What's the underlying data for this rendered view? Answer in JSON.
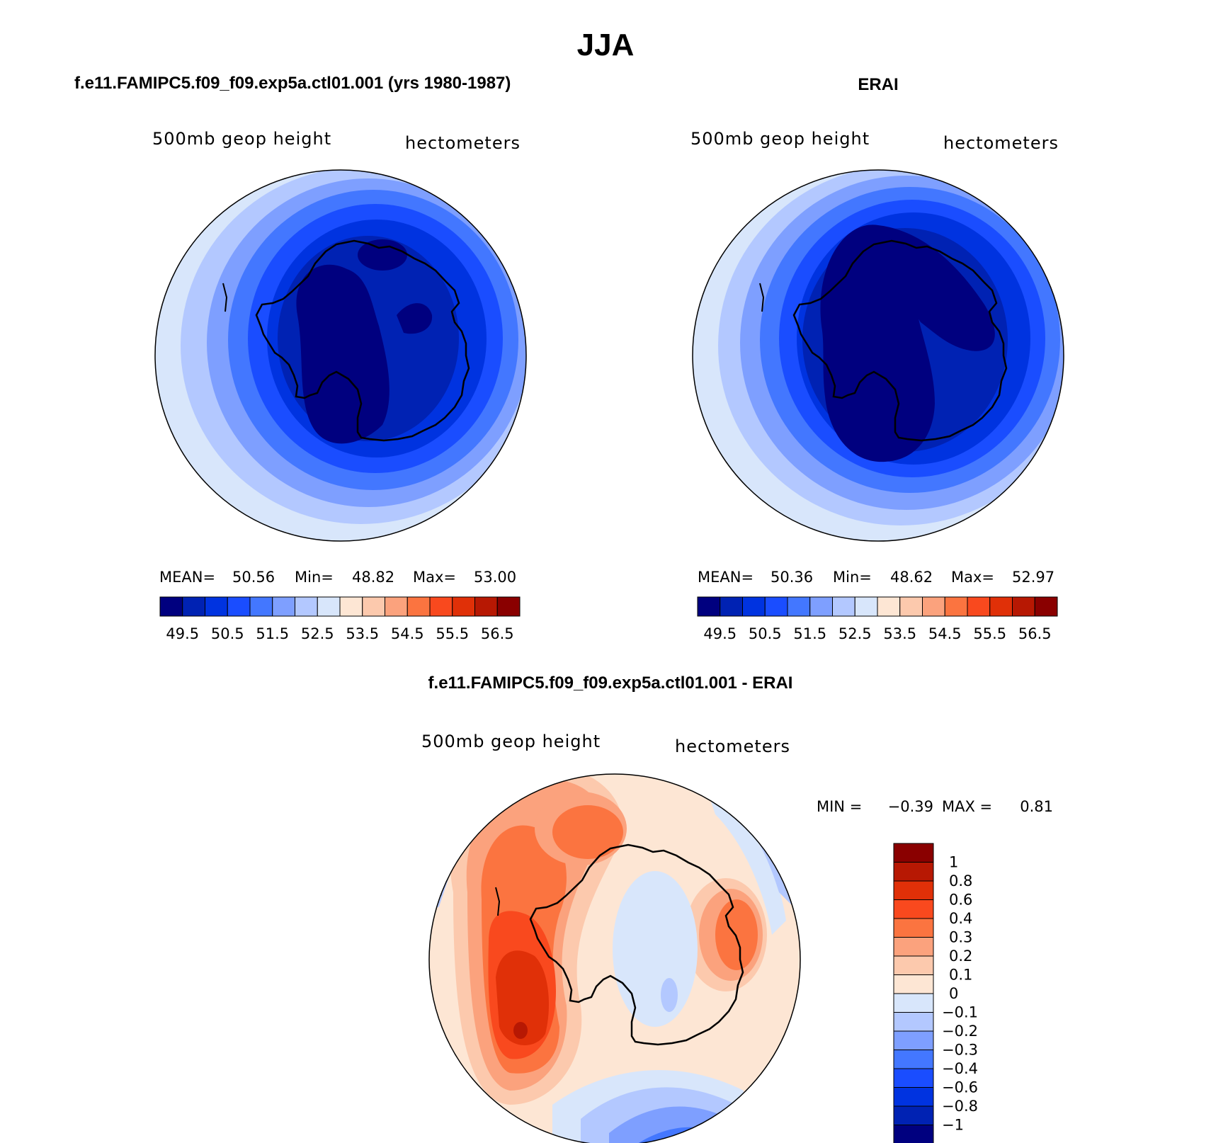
{
  "figure": {
    "title": "JJA",
    "panel1": {
      "case_title": "f.e11.FAMIPC5.f09_f09.exp5a.ctl01.001 (yrs 1980-1987)",
      "var_label": "500mb geop height",
      "units": "hectometers",
      "stats": {
        "mean_label": "MEAN=",
        "mean": "50.56",
        "min_label": "Min=",
        "min": "48.82",
        "max_label": "Max=",
        "max": "53.00"
      }
    },
    "panel2": {
      "case_title": "ERAI",
      "var_label": "500mb geop height",
      "units": "hectometers",
      "stats": {
        "mean_label": "MEAN=",
        "mean": "50.36",
        "min_label": "Min=",
        "min": "48.62",
        "max_label": "Max=",
        "max": "52.97"
      }
    },
    "panel3": {
      "case_title": "f.e11.FAMIPC5.f09_f09.exp5a.ctl01.001 - ERAI",
      "var_label": "500mb geop height",
      "units": "hectometers",
      "stats": {
        "min_label": "MIN =",
        "min": "−0.39",
        "max_label": "MAX =",
        "max": "0.81"
      }
    }
  },
  "colorbar_abs": {
    "colors": [
      "#00007f",
      "#0022b3",
      "#0033e0",
      "#1a4dff",
      "#4377ff",
      "#7e9fff",
      "#b3c8ff",
      "#d8e6fb",
      "#fde6d4",
      "#fcc9ad",
      "#fba27d",
      "#fb7440",
      "#f9491e",
      "#e03008",
      "#b71803",
      "#8a0000"
    ],
    "labels": [
      "49.5",
      "50.5",
      "51.5",
      "52.5",
      "53.5",
      "54.5",
      "55.5",
      "56.5"
    ]
  },
  "colorbar_diff": {
    "colors_top_to_bottom": [
      "#8a0000",
      "#b71803",
      "#e03008",
      "#f9491e",
      "#fb7440",
      "#fba27d",
      "#fcc9ad",
      "#fde6d4",
      "#d8e6fb",
      "#b3c8ff",
      "#7e9fff",
      "#4377ff",
      "#1a4dff",
      "#0033e0",
      "#0022b3",
      "#00007f"
    ],
    "labels": [
      "1",
      "0.8",
      "0.6",
      "0.4",
      "0.3",
      "0.2",
      "0.1",
      "0",
      "−0.1",
      "−0.2",
      "−0.3",
      "−0.4",
      "−0.6",
      "−0.8",
      "−1"
    ]
  }
}
